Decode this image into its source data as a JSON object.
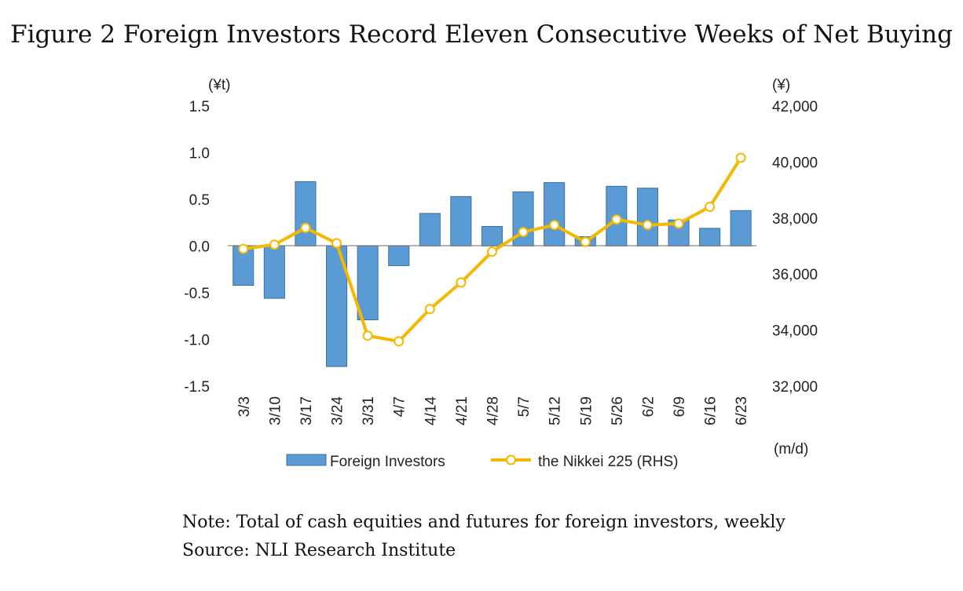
{
  "figure": {
    "title": "Figure 2 Foreign Investors Record Eleven Consecutive Weeks of Net Buying",
    "note": "Note: Total of cash equities and futures for foreign investors, weekly",
    "source": "Source: NLI Research Institute"
  },
  "chart_data": {
    "type": "bar+line",
    "categories": [
      "3/3",
      "3/10",
      "3/17",
      "3/24",
      "3/31",
      "4/7",
      "4/14",
      "4/21",
      "4/28",
      "5/7",
      "5/12",
      "5/19",
      "5/26",
      "6/2",
      "6/9",
      "6/16",
      "6/23"
    ],
    "left_axis": {
      "unit_label": "(¥t)",
      "ylim": [
        -1.5,
        1.5
      ],
      "ticks": [
        "1.5",
        "1.0",
        "0.5",
        "0.0",
        "-0.5",
        "-1.0",
        "-1.5"
      ]
    },
    "right_axis": {
      "unit_label": "(¥)",
      "ylim": [
        32000,
        42000
      ],
      "ticks": [
        "42,000",
        "40,000",
        "38,000",
        "36,000",
        "34,000",
        "32,000"
      ]
    },
    "x_unit_label": "(m/d)",
    "series": [
      {
        "name": "Foreign Investors",
        "type": "bar",
        "axis": "left",
        "color": "#5b9bd5",
        "values": [
          -0.42,
          -0.56,
          0.69,
          -1.29,
          -0.79,
          -0.21,
          0.35,
          0.53,
          0.21,
          0.58,
          0.68,
          0.1,
          0.64,
          0.62,
          0.28,
          0.19,
          0.38
        ]
      },
      {
        "name": "the Nikkei 225 (RHS)",
        "type": "line",
        "axis": "right",
        "color": "#f5b800",
        "values": [
          36900,
          37050,
          37650,
          37100,
          33800,
          33600,
          34750,
          35700,
          36800,
          37500,
          37750,
          37150,
          37950,
          37750,
          37800,
          38400,
          40150
        ]
      }
    ],
    "legend": [
      "Foreign Investors",
      "the Nikkei 225 (RHS)"
    ],
    "legend_position": "bottom"
  }
}
